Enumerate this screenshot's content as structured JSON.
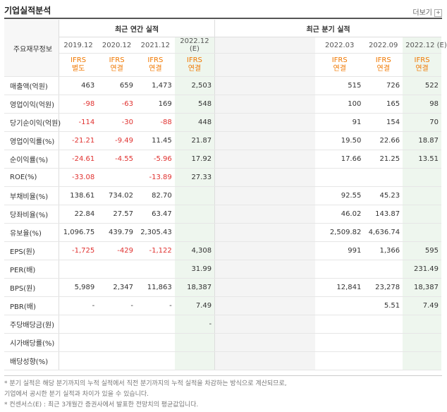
{
  "header": {
    "title": "기업실적분석",
    "more": "더보기",
    "more_icon": "plus-icon"
  },
  "table": {
    "group_annual": "최근 연간 실적",
    "group_quarter": "최근 분기 실적",
    "row_header": "주요재무정보",
    "annual_periods": [
      "2019.12",
      "2020.12",
      "2021.12",
      "2022.12\n(E)"
    ],
    "annual_ifrs": [
      "IFRS\n별도",
      "IFRS\n연결",
      "IFRS\n연결",
      "IFRS\n연결"
    ],
    "quarter_periods": [
      "",
      "",
      "",
      "2022.03",
      "2022.09",
      "2022.12 (E)"
    ],
    "quarter_ifrs": [
      "",
      "",
      "",
      "IFRS\n연결",
      "IFRS\n연결",
      "IFRS\n연결"
    ],
    "rows": [
      {
        "label": "매출액(억원)",
        "a": [
          "463",
          "659",
          "1,473",
          "2,503"
        ],
        "q": [
          "",
          "",
          "",
          "515",
          "726",
          "522"
        ]
      },
      {
        "label": "영업이익(억원)",
        "a": [
          "-98",
          "-63",
          "169",
          "548"
        ],
        "q": [
          "",
          "",
          "",
          "100",
          "165",
          "98"
        ]
      },
      {
        "label": "당기순이익(억원)",
        "a": [
          "-114",
          "-30",
          "-88",
          "448"
        ],
        "q": [
          "",
          "",
          "",
          "91",
          "154",
          "70"
        ]
      },
      {
        "label": "영업이익률(%)",
        "a": [
          "-21.21",
          "-9.49",
          "11.45",
          "21.87"
        ],
        "q": [
          "",
          "",
          "",
          "19.50",
          "22.66",
          "18.87"
        ]
      },
      {
        "label": "순이익률(%)",
        "a": [
          "-24.61",
          "-4.55",
          "-5.96",
          "17.92"
        ],
        "q": [
          "",
          "",
          "",
          "17.66",
          "21.25",
          "13.51"
        ]
      },
      {
        "label": "ROE(%)",
        "a": [
          "-33.08",
          "",
          "-13.89",
          "27.33"
        ],
        "q": [
          "",
          "",
          "",
          "",
          "",
          ""
        ]
      },
      {
        "label": "부채비율(%)",
        "a": [
          "138.61",
          "734.02",
          "82.70",
          ""
        ],
        "q": [
          "",
          "",
          "",
          "92.55",
          "45.23",
          ""
        ]
      },
      {
        "label": "당좌비율(%)",
        "a": [
          "22.84",
          "27.57",
          "63.47",
          ""
        ],
        "q": [
          "",
          "",
          "",
          "46.02",
          "143.87",
          ""
        ]
      },
      {
        "label": "유보율(%)",
        "a": [
          "1,096.75",
          "439.79",
          "2,305.43",
          ""
        ],
        "q": [
          "",
          "",
          "",
          "2,509.82",
          "4,636.74",
          ""
        ]
      },
      {
        "label": "EPS(원)",
        "a": [
          "-1,725",
          "-429",
          "-1,122",
          "4,308"
        ],
        "q": [
          "",
          "",
          "",
          "991",
          "1,366",
          "595"
        ]
      },
      {
        "label": "PER(배)",
        "a": [
          "",
          "",
          "",
          "31.99"
        ],
        "q": [
          "",
          "",
          "",
          "",
          "",
          "231.49"
        ]
      },
      {
        "label": "BPS(원)",
        "a": [
          "5,989",
          "2,347",
          "11,863",
          "18,387"
        ],
        "q": [
          "",
          "",
          "",
          "12,841",
          "23,278",
          "18,387"
        ]
      },
      {
        "label": "PBR(배)",
        "a": [
          "-",
          "-",
          "-",
          "7.49"
        ],
        "q": [
          "",
          "",
          "",
          "",
          "5.51",
          "7.49"
        ]
      },
      {
        "label": "주당배당금(원)",
        "a": [
          "",
          "",
          "",
          "-"
        ],
        "q": [
          "",
          "",
          "",
          "",
          "",
          ""
        ]
      },
      {
        "label": "시가배당률(%)",
        "a": [
          "",
          "",
          "",
          ""
        ],
        "q": [
          "",
          "",
          "",
          "",
          "",
          ""
        ]
      },
      {
        "label": "배당성향(%)",
        "a": [
          "",
          "",
          "",
          ""
        ],
        "q": [
          "",
          "",
          "",
          "",
          "",
          ""
        ]
      }
    ]
  },
  "notes": [
    "* 분기 실적은 해당 분기까지의 누적 실적에서 직전 분기까지의 누적 실적을 차감하는 방식으로 계산되므로,",
    "   기업에서 공시한 분기 실적과 차이가 있을 수 있습니다.",
    "* 컨센서스(E) : 최근 3개월간 증권사에서 발표한 전망치의 평균값입니다."
  ]
}
